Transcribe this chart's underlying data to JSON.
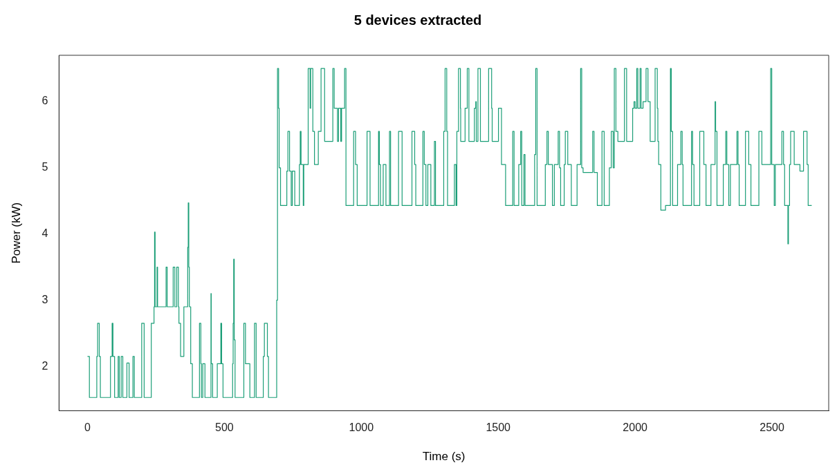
{
  "chart_data": {
    "type": "step",
    "title": "5 devices extracted",
    "xlabel": "Time (s)",
    "ylabel": "Power (kW)",
    "xlim": [
      -104,
      2707
    ],
    "ylim": [
      1.33,
      6.7
    ],
    "xticks": [
      0,
      500,
      1000,
      1500,
      2000,
      2500
    ],
    "yticks": [
      2,
      3,
      4,
      5,
      6
    ],
    "grid": false,
    "legend": false,
    "series": [
      {
        "color": "#1b9e77",
        "x": [
          0,
          7,
          34,
          37,
          43,
          47,
          84,
          90,
          93,
          99,
          112,
          116,
          123,
          129,
          144,
          152,
          166,
          171,
          198,
          207,
          233,
          243,
          245,
          247,
          254,
          256,
          287,
          291,
          313,
          319,
          326,
          332,
          334,
          340,
          352,
          366,
          368,
          370,
          372,
          377,
          383,
          409,
          414,
          416,
          421,
          429,
          451,
          452,
          457,
          474,
          487,
          490,
          495,
          530,
          532,
          534,
          536,
          539,
          571,
          577,
          593,
          610,
          616,
          642,
          646,
          657,
          661,
          691,
          694,
          698,
          700,
          705,
          728,
          732,
          738,
          744,
          748,
          757,
          774,
          777,
          780,
          788,
          790,
          806,
          813,
          815,
          823,
          829,
          843,
          853,
          866,
          896,
          901,
          913,
          917,
          925,
          928,
          939,
          944,
          972,
          979,
          985,
          1021,
          1032,
          1063,
          1066,
          1070,
          1080,
          1090,
          1103,
          1107,
          1136,
          1149,
          1185,
          1195,
          1199,
          1225,
          1230,
          1236,
          1243,
          1254,
          1267,
          1271,
          1301,
          1306,
          1312,
          1315,
          1340,
          1346,
          1349,
          1355,
          1362,
          1363,
          1379,
          1387,
          1393,
          1413,
          1418,
          1420,
          1426,
          1435,
          1465,
          1476,
          1478,
          1501,
          1512,
          1527,
          1553,
          1558,
          1575,
          1582,
          1586,
          1594,
          1598,
          1633,
          1637,
          1642,
          1672,
          1678,
          1683,
          1698,
          1705,
          1719,
          1724,
          1728,
          1741,
          1745,
          1754,
          1767,
          1788,
          1801,
          1805,
          1810,
          1845,
          1850,
          1862,
          1879,
          1887,
          1906,
          1913,
          1920,
          1924,
          1930,
          1937,
          1961,
          1969,
          1991,
          1996,
          2000,
          2006,
          2010,
          2018,
          2022,
          2029,
          2040,
          2047,
          2055,
          2073,
          2081,
          2083,
          2086,
          2094,
          2111,
          2129,
          2132,
          2137,
          2155,
          2167,
          2172,
          2175,
          2206,
          2210,
          2215,
          2236,
          2251,
          2259,
          2277,
          2292,
          2294,
          2299,
          2322,
          2331,
          2335,
          2342,
          2348,
          2372,
          2376,
          2380,
          2403,
          2415,
          2423,
          2452,
          2463,
          2495,
          2499,
          2508,
          2512,
          2536,
          2542,
          2546,
          2558,
          2560,
          2564,
          2568,
          2581,
          2602,
          2615,
          2628,
          2632,
          2645
        ],
        "values": [
          2.15,
          1.53,
          2.15,
          2.65,
          2.15,
          1.53,
          2.15,
          2.65,
          2.15,
          1.53,
          2.15,
          1.53,
          2.15,
          1.53,
          2.05,
          1.53,
          2.15,
          1.53,
          2.65,
          1.53,
          2.65,
          2.9,
          4.03,
          2.9,
          3.5,
          2.9,
          3.5,
          2.9,
          3.5,
          2.9,
          3.5,
          2.9,
          2.65,
          2.15,
          2.9,
          3.8,
          4.47,
          3.5,
          2.9,
          2.04,
          1.53,
          2.65,
          2.04,
          1.53,
          2.04,
          1.53,
          3.1,
          2.04,
          1.53,
          2.04,
          2.65,
          2.04,
          1.53,
          2.04,
          2.65,
          3.62,
          2.4,
          1.53,
          2.65,
          2.04,
          1.53,
          2.65,
          1.53,
          2.15,
          2.65,
          2.15,
          1.53,
          3.0,
          6.5,
          5.9,
          5.0,
          4.43,
          4.95,
          5.55,
          4.95,
          4.43,
          4.95,
          4.43,
          5.05,
          5.55,
          5.05,
          4.43,
          5.05,
          6.5,
          5.9,
          6.5,
          5.55,
          5.05,
          5.55,
          6.5,
          5.4,
          6.5,
          5.9,
          5.4,
          5.9,
          5.4,
          5.9,
          6.5,
          4.43,
          5.55,
          5.05,
          4.43,
          5.55,
          4.43,
          5.55,
          5.05,
          4.43,
          5.05,
          4.43,
          5.55,
          4.43,
          5.55,
          4.43,
          5.55,
          5.05,
          4.43,
          5.55,
          5.05,
          4.43,
          5.05,
          4.43,
          5.4,
          4.43,
          5.55,
          6.5,
          5.55,
          4.43,
          5.05,
          4.43,
          5.55,
          6.5,
          5.9,
          5.4,
          5.9,
          6.5,
          5.4,
          5.9,
          6.0,
          5.4,
          6.5,
          5.4,
          6.5,
          5.9,
          5.4,
          5.9,
          5.05,
          4.43,
          5.55,
          4.43,
          5.05,
          5.55,
          4.43,
          5.2,
          4.43,
          5.2,
          6.5,
          4.43,
          5.05,
          5.55,
          5.05,
          4.43,
          5.05,
          5.55,
          5.0,
          4.43,
          5.05,
          5.55,
          5.05,
          4.43,
          5.05,
          6.5,
          5.0,
          4.93,
          5.55,
          4.93,
          4.43,
          5.55,
          4.43,
          5.0,
          5.55,
          5.0,
          6.5,
          5.55,
          5.4,
          6.5,
          5.4,
          5.9,
          6.0,
          5.9,
          6.5,
          5.9,
          6.5,
          5.9,
          6.0,
          6.5,
          6.0,
          5.4,
          6.5,
          5.9,
          5.4,
          5.05,
          4.36,
          4.43,
          6.5,
          5.55,
          4.43,
          5.05,
          5.55,
          5.05,
          4.43,
          5.55,
          5.05,
          4.43,
          5.55,
          5.05,
          4.43,
          5.05,
          6.0,
          5.55,
          4.43,
          5.05,
          5.55,
          5.05,
          4.43,
          5.05,
          5.55,
          5.05,
          4.43,
          5.55,
          5.05,
          4.43,
          5.55,
          5.05,
          6.5,
          5.05,
          4.43,
          5.05,
          5.55,
          5.05,
          4.43,
          3.85,
          4.43,
          5.05,
          5.55,
          5.05,
          4.95,
          5.55,
          5.05,
          4.43,
          4.43
        ]
      }
    ]
  }
}
